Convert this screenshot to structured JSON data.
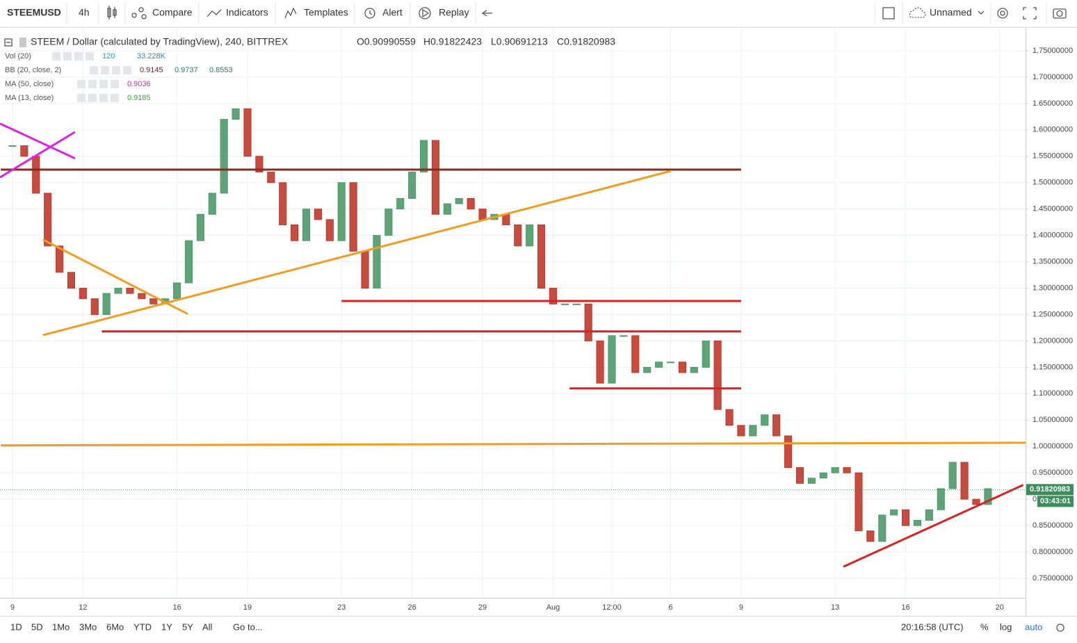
{
  "toolbar": {
    "symbol": "STEEMUSD",
    "interval": "4h",
    "buttons": [
      "Compare",
      "Indicators",
      "Templates",
      "Alert",
      "Replay"
    ],
    "layout_name": "Unnamed"
  },
  "legend": {
    "title": "STEEM / Dollar (calculated by TradingView), 240, BITTREX",
    "ohlc": [
      "O0.90990559",
      "H0.91822423",
      "L0.90691213",
      "C0.91820983"
    ],
    "indicators": [
      {
        "name": "Vol (20)",
        "values": [
          "120",
          "33.228K"
        ],
        "colors": [
          "#26a69a",
          "#2e86c1"
        ]
      },
      {
        "name": "BB (20, close, 2)",
        "values": [
          "0.9145",
          "0.9737",
          "0.8553"
        ],
        "colors": [
          "#8b1a1a",
          "#1f7a7a",
          "#1f7a7a"
        ]
      },
      {
        "name": "MA (50, close)",
        "values": [
          "0.9036"
        ],
        "colors": [
          "#d81bd8"
        ]
      },
      {
        "name": "MA (13, close)",
        "values": [
          "0.9185"
        ],
        "colors": [
          "#22b322"
        ]
      }
    ]
  },
  "chart_data": {
    "type": "candlestick",
    "up_color": "#4e9a6a",
    "down_color": "#c0392b",
    "grid": true,
    "x": [
      0,
      0.5,
      1,
      1.5,
      2,
      2.5,
      3,
      3.5,
      4,
      4.5,
      5,
      5.5,
      6,
      6.5,
      7,
      7.5,
      8,
      8.5,
      9,
      9.5,
      10,
      10.5,
      11,
      11.5,
      12,
      12.5,
      13,
      13.5,
      14,
      14.5,
      15,
      15.5,
      16,
      16.5,
      17,
      17.5,
      18,
      18.5,
      19,
      19.5,
      20,
      20.5,
      21,
      21.5,
      22,
      22.5,
      23,
      23.5,
      24,
      24.5,
      25,
      25.5,
      26,
      26.5,
      27,
      27.5,
      28,
      28.5,
      29,
      29.5,
      30,
      30.5,
      31,
      31.5,
      32,
      32.5,
      33,
      33.5,
      34,
      34.5,
      35,
      35.5,
      36,
      36.5,
      37,
      37.5,
      38,
      38.5,
      39,
      39.5,
      40,
      40.5,
      41,
      41.5
    ],
    "values": [
      1.57,
      1.55,
      1.48,
      1.38,
      1.33,
      1.3,
      1.28,
      1.25,
      1.29,
      1.3,
      1.29,
      1.28,
      1.27,
      1.28,
      1.31,
      1.39,
      1.44,
      1.48,
      1.62,
      1.64,
      1.55,
      1.52,
      1.5,
      1.42,
      1.39,
      1.45,
      1.43,
      1.39,
      1.5,
      1.37,
      1.3,
      1.4,
      1.45,
      1.47,
      1.52,
      1.58,
      1.44,
      1.46,
      1.47,
      1.45,
      1.43,
      1.44,
      1.42,
      1.38,
      1.42,
      1.3,
      1.27,
      1.27,
      1.27,
      1.2,
      1.12,
      1.21,
      1.21,
      1.14,
      1.15,
      1.16,
      1.16,
      1.14,
      1.15,
      1.2,
      1.07,
      1.04,
      1.02,
      1.04,
      1.06,
      1.02,
      0.96,
      0.93,
      0.94,
      0.95,
      0.96,
      0.95,
      0.84,
      0.82,
      0.87,
      0.88,
      0.85,
      0.86,
      0.88,
      0.92,
      0.97,
      0.9,
      0.89,
      0.92
    ],
    "xlim": [
      -0.53,
      43.1
    ],
    "ylim": [
      0.7131,
      1.7908
    ],
    "xticks": [
      {
        "value": 0,
        "label": "9"
      },
      {
        "value": 3,
        "label": "12"
      },
      {
        "value": 7,
        "label": "16"
      },
      {
        "value": 10,
        "label": "19"
      },
      {
        "value": 14,
        "label": "23"
      },
      {
        "value": 17,
        "label": "26"
      },
      {
        "value": 20,
        "label": "29"
      },
      {
        "value": 23,
        "label": "Aug"
      },
      {
        "value": 25.5,
        "label": "12:00"
      },
      {
        "value": 28,
        "label": "6"
      },
      {
        "value": 31,
        "label": "9"
      },
      {
        "value": 35,
        "label": "13"
      },
      {
        "value": 38,
        "label": "16"
      },
      {
        "value": 42,
        "label": "20"
      }
    ],
    "yticks": [
      {
        "value": 0.75,
        "label": "0.75000000"
      },
      {
        "value": 0.8,
        "label": "0.80000000"
      },
      {
        "value": 0.85,
        "label": "0.85000000"
      },
      {
        "value": 0.9,
        "label": "0.90000000"
      },
      {
        "value": 0.95,
        "label": "0.95000000"
      },
      {
        "value": 1.0,
        "label": "1.00000000"
      },
      {
        "value": 1.05,
        "label": "1.05000000"
      },
      {
        "value": 1.1,
        "label": "1.10000000"
      },
      {
        "value": 1.15,
        "label": "1.15000000"
      },
      {
        "value": 1.2,
        "label": "1.20000000"
      },
      {
        "value": 1.25,
        "label": "1.25000000"
      },
      {
        "value": 1.3,
        "label": "1.30000000"
      },
      {
        "value": 1.35,
        "label": "1.35000000"
      },
      {
        "value": 1.4,
        "label": "1.40000000"
      },
      {
        "value": 1.45,
        "label": "1.45000000"
      },
      {
        "value": 1.5,
        "label": "1.50000000"
      },
      {
        "value": 1.55,
        "label": "1.55000000"
      },
      {
        "value": 1.6,
        "label": "1.60000000"
      },
      {
        "value": 1.65,
        "label": "1.65000000"
      },
      {
        "value": 1.7,
        "label": "1.70000000"
      },
      {
        "value": 1.75,
        "label": "1.75000000"
      }
    ],
    "drawings": [
      {
        "color": "#8b2a1a",
        "x": [
          -0.5,
          31
        ],
        "y": [
          1.5247,
          1.5247
        ]
      },
      {
        "color": "#f29d1e",
        "x": [
          -0.5,
          43.1
        ],
        "y": [
          1.002,
          1.007
        ]
      },
      {
        "color": "#dd1f1f",
        "x": [
          14,
          31
        ],
        "y": [
          1.2757,
          1.2757
        ]
      },
      {
        "color": "#dd1f1f",
        "x": [
          3.8,
          31
        ],
        "y": [
          1.218,
          1.218
        ]
      },
      {
        "color": "#dd1f1f",
        "x": [
          23.7,
          31
        ],
        "y": [
          1.11,
          1.11
        ]
      },
      {
        "color": "#f29d1e",
        "x": [
          1.3,
          28
        ],
        "y": [
          1.211,
          1.522
        ]
      },
      {
        "color": "#f29d1e",
        "x": [
          1.3,
          7.46
        ],
        "y": [
          1.392,
          1.251
        ]
      },
      {
        "color": "#dd1f1f",
        "x": [
          35.35,
          43
        ],
        "y": [
          0.772,
          0.927
        ]
      },
      {
        "color": "#e020e0",
        "x": [
          -0.53,
          2.66
        ],
        "y": [
          1.612,
          1.546
        ]
      },
      {
        "color": "#e020e0",
        "x": [
          -0.53,
          2.66
        ],
        "y": [
          1.51,
          1.596
        ]
      }
    ],
    "last_price": {
      "value": 0.91820983,
      "label": "0.91820983",
      "countdown": "03:43:01"
    }
  },
  "bottom": {
    "ranges": [
      "1D",
      "5D",
      "1Mo",
      "3Mo",
      "6Mo",
      "YTD",
      "1Y",
      "5Y",
      "All"
    ],
    "goto": "Go to...",
    "time": "20:16:58 (UTC)",
    "options": [
      "%",
      "log",
      "auto"
    ]
  }
}
